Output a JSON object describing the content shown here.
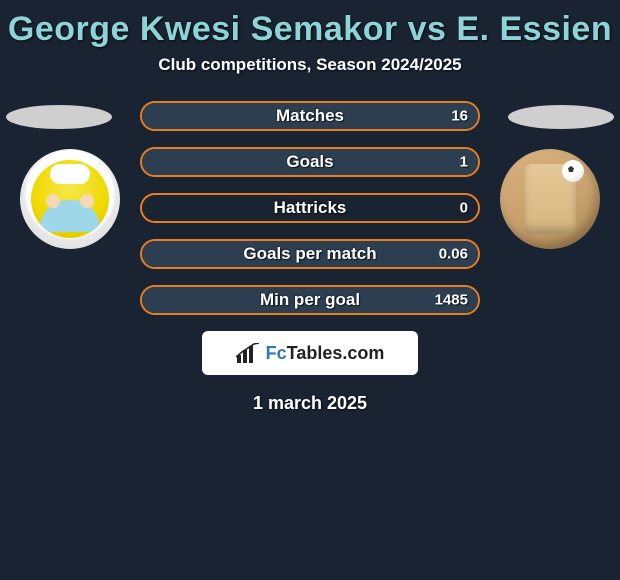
{
  "colors": {
    "background": "#1a2332",
    "title": "#8dd4d8",
    "text": "#ffffff",
    "player_left": "#e67e22",
    "player_right": "#2c3e50",
    "oval": "#cfcfcf",
    "logo_box": "#ffffff",
    "logo_accent": "#2a7abf"
  },
  "title": "George Kwesi Semakor vs E. Essien",
  "subtitle": "Club competitions, Season 2024/2025",
  "date": "1 march 2025",
  "logo": {
    "prefix": "Fc",
    "suffix": "Tables.com"
  },
  "players": {
    "left": {
      "name": "George Kwesi Semakor",
      "color": "#e67e22"
    },
    "right": {
      "name": "E. Essien",
      "color": "#2c3e50"
    }
  },
  "stats": [
    {
      "label": "Matches",
      "left_value": null,
      "right_value": "16",
      "left_pct": 0,
      "right_pct": 100
    },
    {
      "label": "Goals",
      "left_value": null,
      "right_value": "1",
      "left_pct": 0,
      "right_pct": 100
    },
    {
      "label": "Hattricks",
      "left_value": null,
      "right_value": "0",
      "left_pct": 0,
      "right_pct": 0
    },
    {
      "label": "Goals per match",
      "left_value": null,
      "right_value": "0.06",
      "left_pct": 0,
      "right_pct": 100
    },
    {
      "label": "Min per goal",
      "left_value": null,
      "right_value": "1485",
      "left_pct": 0,
      "right_pct": 100
    }
  ],
  "typography": {
    "title_fontsize": 34,
    "subtitle_fontsize": 17,
    "label_fontsize": 17,
    "value_fontsize": 15,
    "date_fontsize": 18
  },
  "layout": {
    "stat_bar_width": 340,
    "stat_bar_height": 30,
    "stat_bar_gap": 16,
    "stat_bar_radius": 16
  }
}
